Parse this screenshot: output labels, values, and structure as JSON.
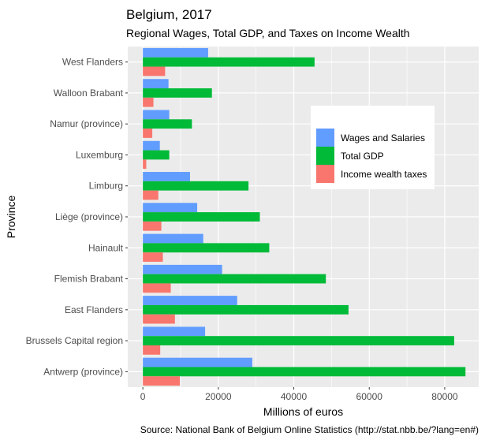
{
  "chart_data": {
    "type": "bar",
    "orientation": "horizontal",
    "title": "Belgium, 2017",
    "subtitle": "Regional Wages, Total GDP, and Taxes on Income Wealth",
    "xlabel": "Millions of euros",
    "ylabel": "Province",
    "caption": "Source: National Bank of Belgium Online Statistics (http://stat.nbb.be/?lang=en#)",
    "xlim": [
      -4000,
      89000
    ],
    "xticks": [
      0,
      20000,
      40000,
      60000,
      80000
    ],
    "grid": true,
    "legend_position": "right",
    "categories": [
      "Antwerp (province)",
      "Brussels Capital region",
      "East Flanders",
      "Flemish Brabant",
      "Hainault",
      "Liège (province)",
      "Limburg",
      "Luxemburg",
      "Namur (province)",
      "Walloon Brabant",
      "West Flanders"
    ],
    "series": [
      {
        "name": "Wages and Salaries",
        "color": "#619CFF",
        "values": [
          29000,
          16500,
          25000,
          21000,
          16000,
          14400,
          12500,
          4500,
          7000,
          6800,
          17300
        ]
      },
      {
        "name": "Total GDP",
        "color": "#00BA38",
        "values": [
          85500,
          82500,
          54500,
          48500,
          33500,
          31000,
          28000,
          7000,
          13000,
          18300,
          45500
        ]
      },
      {
        "name": "Income wealth taxes",
        "color": "#F8766D",
        "values": [
          9800,
          4600,
          8500,
          7400,
          5300,
          4900,
          4100,
          900,
          2500,
          2800,
          5900
        ]
      }
    ]
  }
}
